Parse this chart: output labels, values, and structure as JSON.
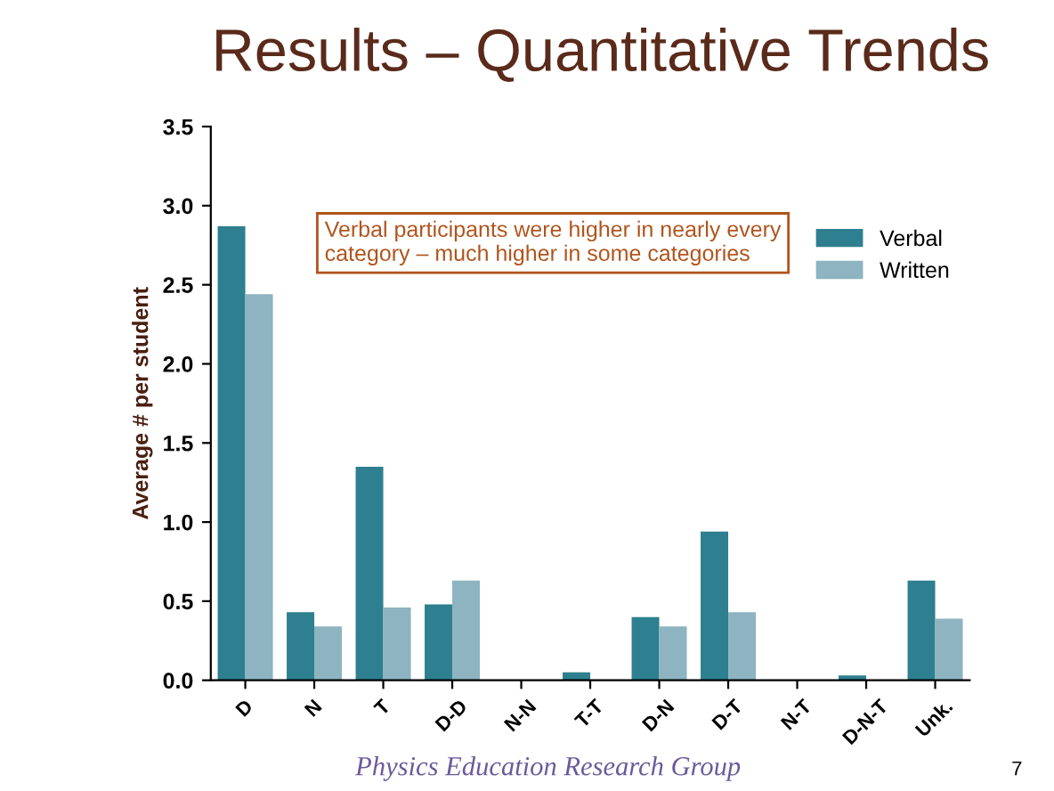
{
  "chart_data": {
    "type": "bar",
    "title": "Results – Quantitative Trends",
    "ylabel": "Average # per student",
    "categories": [
      "D",
      "N",
      "T",
      "D-D",
      "N-N",
      "T-T",
      "D-N",
      "D-T",
      "N-T",
      "D-N-T",
      "Unk."
    ],
    "series": [
      {
        "name": "Verbal",
        "color": "#2e7f8f",
        "values": [
          2.87,
          0.43,
          1.35,
          0.48,
          0,
          0.05,
          0.4,
          0.94,
          0,
          0.03,
          0.63
        ]
      },
      {
        "name": "Written",
        "color": "#8db4c0",
        "values": [
          2.44,
          0.34,
          0.46,
          0.63,
          0,
          0,
          0.34,
          0.43,
          0,
          0,
          0.39
        ]
      }
    ],
    "ylim": [
      0,
      3.5
    ],
    "yticks": [
      {
        "value": 0,
        "label": "0.0"
      },
      0.5,
      {
        "value": 1,
        "label": "1.0"
      },
      1.5,
      {
        "value": 2,
        "label": "2.0"
      },
      2.5,
      {
        "value": 3,
        "label": "3.0"
      },
      3.5
    ],
    "grid": false,
    "legend": "top right",
    "annotations": [
      "Verbal participants were higher in nearly every category – much higher in some categories",
      "Physics Education Research Group",
      "7"
    ]
  }
}
